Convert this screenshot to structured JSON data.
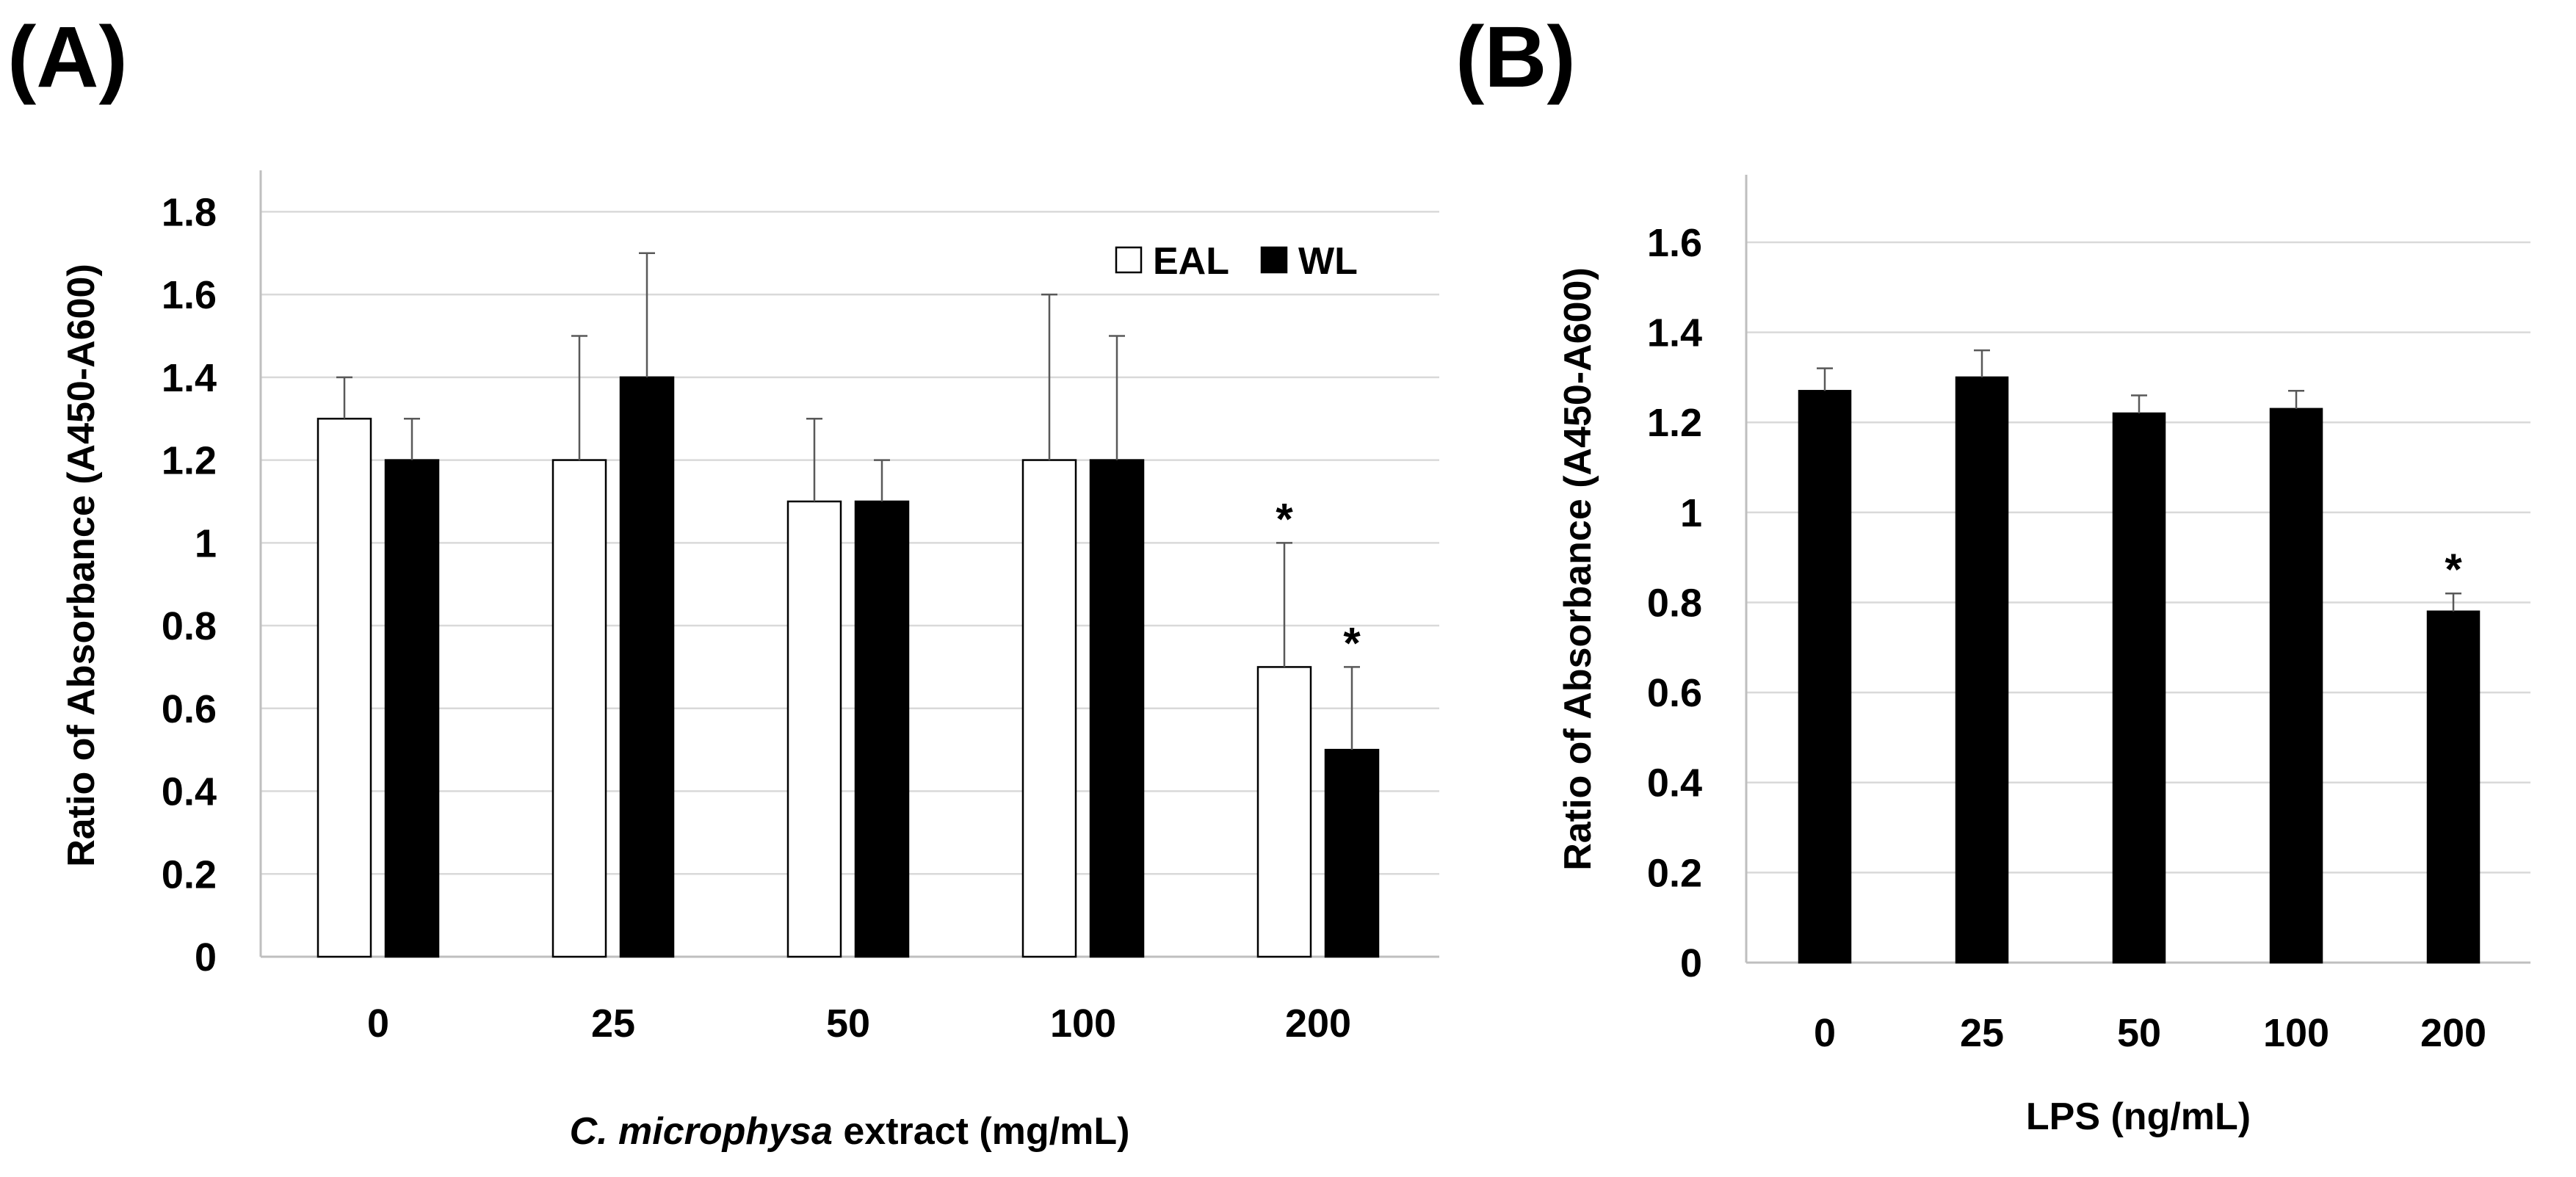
{
  "chart_data": [
    {
      "panel_label": "(A)",
      "type": "bar",
      "categories": [
        "0",
        "25",
        "50",
        "100",
        "200"
      ],
      "series": [
        {
          "name": "EAL",
          "color": "#ffffff",
          "values": [
            1.3,
            1.2,
            1.1,
            1.2,
            0.7
          ],
          "errors": [
            0.1,
            0.3,
            0.2,
            0.4,
            0.3
          ],
          "significant": [
            "",
            "",
            "",
            "",
            "*"
          ]
        },
        {
          "name": "WL",
          "color": "#000000",
          "values": [
            1.2,
            1.4,
            1.1,
            1.2,
            0.5
          ],
          "errors": [
            0.1,
            0.3,
            0.1,
            0.3,
            0.2
          ],
          "significant": [
            "",
            "",
            "",
            "",
            "*"
          ]
        }
      ],
      "xlabel_italic": "C. microphysa",
      "xlabel_rest": " extract (mg/mL)",
      "ylabel": "Ratio of Absorbance (A450-A600)",
      "ylim": [
        0,
        1.9
      ],
      "yticks": [
        "0",
        "0.2",
        "0.4",
        "0.6",
        "0.8",
        "1",
        "1.2",
        "1.4",
        "1.6",
        "1.8"
      ],
      "grid": true,
      "legend_position": "top-right"
    },
    {
      "panel_label": "(B)",
      "type": "bar",
      "categories": [
        "0",
        "25",
        "50",
        "100",
        "200"
      ],
      "series": [
        {
          "name": "LPS",
          "color": "#000000",
          "values": [
            1.27,
            1.3,
            1.22,
            1.23,
            0.78
          ],
          "errors": [
            0.05,
            0.06,
            0.04,
            0.04,
            0.04
          ],
          "significant": [
            "",
            "",
            "",
            "",
            "*"
          ]
        }
      ],
      "xlabel": "LPS (ng/mL)",
      "ylabel": "Ratio of Absorbance (A450-A600)",
      "ylim": [
        0,
        1.75
      ],
      "yticks": [
        "0",
        "0.2",
        "0.4",
        "0.6",
        "0.8",
        "1",
        "1.2",
        "1.4",
        "1.6"
      ],
      "grid": true
    }
  ]
}
